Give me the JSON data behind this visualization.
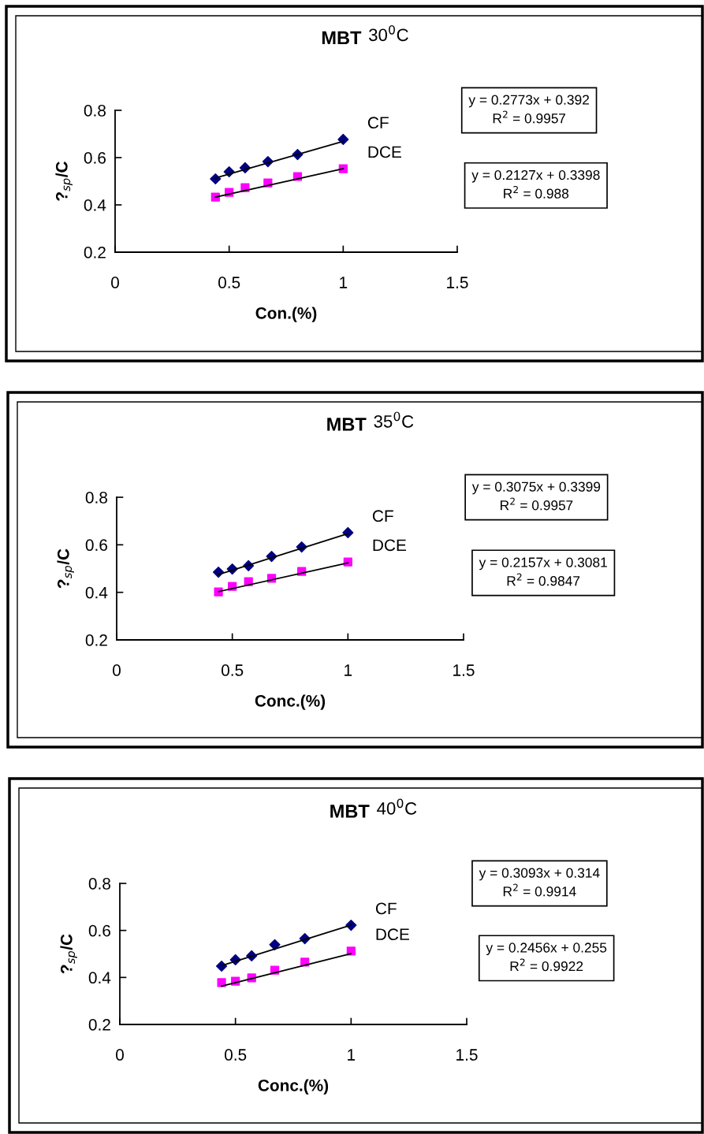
{
  "chart_data": [
    {
      "type": "scatter",
      "title": "MBT 30$^{0}$C",
      "xlabel": "Con.(%)",
      "ylabel": "?$_{sp}$/C",
      "xlim": [
        0,
        1.5
      ],
      "xticks": [
        0,
        0.5,
        1,
        1.5
      ],
      "ylim": [
        0.2,
        0.8
      ],
      "yticks": [
        0.2,
        0.4,
        0.6,
        0.8
      ],
      "grid": false,
      "legend": false,
      "annotations": [
        "y = 0.2773x + 0.392\nR$^{2}$ = 0.9957",
        "y = 0.2127x + 0.3398\nR$^{2}$ = 0.988"
      ],
      "series": [
        {
          "name": "CF",
          "color": "#000080",
          "marker": "diamond",
          "x": [
            0.44,
            0.5,
            0.57,
            0.67,
            0.8,
            1.0
          ],
          "values": [
            0.51,
            0.54,
            0.557,
            0.583,
            0.613,
            0.677
          ]
        },
        {
          "name": "DCE",
          "color": "#ff00ff",
          "marker": "square",
          "x": [
            0.44,
            0.5,
            0.57,
            0.67,
            0.8,
            1.0
          ],
          "values": [
            0.433,
            0.453,
            0.473,
            0.493,
            0.52,
            0.553
          ]
        },
        {
          "type": "line",
          "color": "#000000",
          "marker": "none",
          "x": [
            0.44,
            1.0
          ],
          "values": [
            0.514,
            0.669
          ]
        },
        {
          "type": "line",
          "color": "#000000",
          "marker": "none",
          "x": [
            0.44,
            1.0
          ],
          "values": [
            0.433,
            0.553
          ]
        }
      ]
    },
    {
      "type": "scatter",
      "title": "MBT 35$^{0}$C",
      "xlabel": "Conc.(%)",
      "ylabel": "?$_{sp}$/C",
      "xlim": [
        0,
        1.5
      ],
      "xticks": [
        0,
        0.5,
        1,
        1.5
      ],
      "ylim": [
        0.2,
        0.8
      ],
      "yticks": [
        0.2,
        0.4,
        0.6,
        0.8
      ],
      "grid": false,
      "legend": false,
      "annotations": [
        "y = 0.3075x + 0.3399\nR$^{2}$ = 0.9957",
        "y = 0.2157x + 0.3081\nR$^{2}$ = 0.9847"
      ],
      "series": [
        {
          "name": "CF",
          "color": "#000080",
          "marker": "diamond",
          "x": [
            0.44,
            0.5,
            0.57,
            0.67,
            0.8,
            1.0
          ],
          "values": [
            0.485,
            0.498,
            0.512,
            0.551,
            0.591,
            0.651
          ]
        },
        {
          "name": "DCE",
          "color": "#ff00ff",
          "marker": "square",
          "x": [
            0.44,
            0.5,
            0.57,
            0.67,
            0.8,
            1.0
          ],
          "values": [
            0.402,
            0.425,
            0.445,
            0.459,
            0.488,
            0.528
          ]
        },
        {
          "type": "line",
          "color": "#000000",
          "marker": "none",
          "x": [
            0.44,
            1.0
          ],
          "values": [
            0.475,
            0.647
          ]
        },
        {
          "type": "line",
          "color": "#000000",
          "marker": "none",
          "x": [
            0.44,
            1.0
          ],
          "values": [
            0.403,
            0.524
          ]
        }
      ]
    },
    {
      "type": "scatter",
      "title": "MBT 40$^{0}$C",
      "xlabel": "Conc.(%)",
      "ylabel": "?$_{sp}$/C",
      "xlim": [
        0,
        1.5
      ],
      "xticks": [
        0,
        0.5,
        1,
        1.5
      ],
      "ylim": [
        0.2,
        0.8
      ],
      "yticks": [
        0.2,
        0.4,
        0.6,
        0.8
      ],
      "grid": false,
      "legend": false,
      "annotations": [
        "y = 0.3093x + 0.314\nR$^{2}$ = 0.9914",
        "y = 0.2456x + 0.255\nR$^{2}$ = 0.9922"
      ],
      "series": [
        {
          "name": "CF",
          "color": "#000080",
          "marker": "diamond",
          "x": [
            0.44,
            0.5,
            0.57,
            0.67,
            0.8,
            1.0
          ],
          "values": [
            0.448,
            0.475,
            0.492,
            0.539,
            0.565,
            0.622
          ]
        },
        {
          "name": "DCE",
          "color": "#ff00ff",
          "marker": "square",
          "x": [
            0.44,
            0.5,
            0.57,
            0.67,
            0.8,
            1.0
          ],
          "values": [
            0.378,
            0.384,
            0.398,
            0.431,
            0.465,
            0.512
          ]
        },
        {
          "type": "line",
          "color": "#000000",
          "marker": "none",
          "x": [
            0.44,
            1.0
          ],
          "values": [
            0.45,
            0.623
          ]
        },
        {
          "type": "line",
          "color": "#000000",
          "marker": "none",
          "x": [
            0.44,
            1.0
          ],
          "values": [
            0.363,
            0.501
          ]
        }
      ]
    }
  ]
}
